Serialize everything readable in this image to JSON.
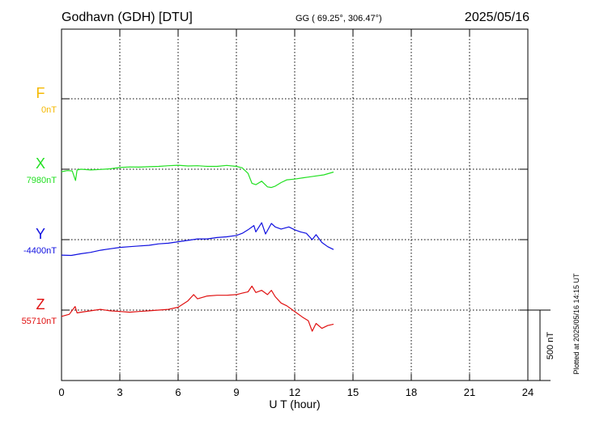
{
  "header": {
    "station": "Godhavn (GDH)  [DTU]",
    "coords": "GG ( 69.25°, 306.47°)",
    "date": "2025/05/16"
  },
  "footer": {
    "plotted_at": "Plotted at 2025/05/16 14:15 UT"
  },
  "scale_bar": {
    "label": "500 nT",
    "value_nT": 500
  },
  "colors": {
    "F": "#f5b800",
    "X": "#22e022",
    "Y": "#1010e0",
    "Z": "#e01010",
    "grid": "#000000"
  },
  "chart_data": {
    "type": "line",
    "title": "Godhavn (GDH)  [DTU]",
    "xlabel": "U T (hour)",
    "ylabel": "",
    "xlim": [
      0,
      24
    ],
    "grid": true,
    "x_ticks": [
      "0",
      "3",
      "6",
      "9",
      "12",
      "15",
      "18",
      "21",
      "24"
    ],
    "series": [
      {
        "name": "F",
        "baseline_label": "0nT",
        "baseline_nT": 0,
        "points": []
      },
      {
        "name": "X",
        "baseline_label": "7980nT",
        "baseline_nT": 7980,
        "points": [
          [
            0,
            7962
          ],
          [
            0.3,
            7970
          ],
          [
            0.55,
            7968
          ],
          [
            0.72,
            7900
          ],
          [
            0.8,
            7975
          ],
          [
            1.0,
            7980
          ],
          [
            1.5,
            7975
          ],
          [
            2.0,
            7978
          ],
          [
            2.5,
            7983
          ],
          [
            3.0,
            7992
          ],
          [
            3.5,
            7996
          ],
          [
            4.0,
            7995
          ],
          [
            4.5,
            7998
          ],
          [
            5.0,
            8000
          ],
          [
            5.5,
            8005
          ],
          [
            6.0,
            8008
          ],
          [
            6.5,
            8003
          ],
          [
            7.0,
            8005
          ],
          [
            7.5,
            8000
          ],
          [
            8.0,
            8000
          ],
          [
            8.5,
            8007
          ],
          [
            9.0,
            8000
          ],
          [
            9.3,
            7990
          ],
          [
            9.6,
            7950
          ],
          [
            9.8,
            7880
          ],
          [
            10.0,
            7870
          ],
          [
            10.3,
            7895
          ],
          [
            10.6,
            7855
          ],
          [
            10.8,
            7850
          ],
          [
            11.0,
            7860
          ],
          [
            11.3,
            7885
          ],
          [
            11.6,
            7905
          ],
          [
            12.0,
            7910
          ],
          [
            12.5,
            7920
          ],
          [
            13.0,
            7930
          ],
          [
            13.5,
            7940
          ],
          [
            14.0,
            7960
          ]
        ]
      },
      {
        "name": "Y",
        "baseline_label": "-4400nT",
        "baseline_nT": -4400,
        "points": [
          [
            0,
            -4510
          ],
          [
            0.5,
            -4512
          ],
          [
            1.0,
            -4500
          ],
          [
            1.5,
            -4490
          ],
          [
            2.0,
            -4475
          ],
          [
            2.5,
            -4465
          ],
          [
            3.0,
            -4455
          ],
          [
            3.5,
            -4450
          ],
          [
            4.0,
            -4445
          ],
          [
            4.5,
            -4440
          ],
          [
            5.0,
            -4430
          ],
          [
            5.5,
            -4425
          ],
          [
            6.0,
            -4415
          ],
          [
            6.5,
            -4405
          ],
          [
            7.0,
            -4395
          ],
          [
            7.5,
            -4395
          ],
          [
            8.0,
            -4385
          ],
          [
            8.5,
            -4380
          ],
          [
            9.0,
            -4370
          ],
          [
            9.3,
            -4355
          ],
          [
            9.6,
            -4330
          ],
          [
            9.9,
            -4300
          ],
          [
            10.0,
            -4345
          ],
          [
            10.3,
            -4280
          ],
          [
            10.5,
            -4360
          ],
          [
            10.8,
            -4285
          ],
          [
            11.0,
            -4310
          ],
          [
            11.3,
            -4325
          ],
          [
            11.7,
            -4310
          ],
          [
            12.0,
            -4330
          ],
          [
            12.3,
            -4345
          ],
          [
            12.6,
            -4355
          ],
          [
            12.9,
            -4400
          ],
          [
            13.1,
            -4365
          ],
          [
            13.4,
            -4420
          ],
          [
            13.7,
            -4450
          ],
          [
            14.0,
            -4470
          ]
        ]
      },
      {
        "name": "Z",
        "baseline_label": "55710nT",
        "baseline_nT": 55710,
        "points": [
          [
            0,
            55665
          ],
          [
            0.4,
            55680
          ],
          [
            0.7,
            55735
          ],
          [
            0.8,
            55690
          ],
          [
            1.0,
            55695
          ],
          [
            1.5,
            55705
          ],
          [
            2.0,
            55715
          ],
          [
            2.5,
            55705
          ],
          [
            3.0,
            55700
          ],
          [
            3.5,
            55695
          ],
          [
            4.0,
            55700
          ],
          [
            4.5,
            55705
          ],
          [
            5.0,
            55710
          ],
          [
            5.5,
            55715
          ],
          [
            6.0,
            55730
          ],
          [
            6.5,
            55775
          ],
          [
            6.8,
            55820
          ],
          [
            7.0,
            55790
          ],
          [
            7.5,
            55810
          ],
          [
            8.0,
            55815
          ],
          [
            8.5,
            55815
          ],
          [
            9.0,
            55820
          ],
          [
            9.3,
            55830
          ],
          [
            9.6,
            55840
          ],
          [
            9.8,
            55880
          ],
          [
            10.0,
            55835
          ],
          [
            10.3,
            55850
          ],
          [
            10.6,
            55820
          ],
          [
            10.8,
            55850
          ],
          [
            11.0,
            55805
          ],
          [
            11.3,
            55760
          ],
          [
            11.6,
            55740
          ],
          [
            11.9,
            55710
          ],
          [
            12.1,
            55690
          ],
          [
            12.4,
            55660
          ],
          [
            12.7,
            55635
          ],
          [
            12.9,
            55560
          ],
          [
            13.1,
            55615
          ],
          [
            13.4,
            55580
          ],
          [
            13.7,
            55600
          ],
          [
            14.0,
            55610
          ]
        ]
      }
    ]
  }
}
